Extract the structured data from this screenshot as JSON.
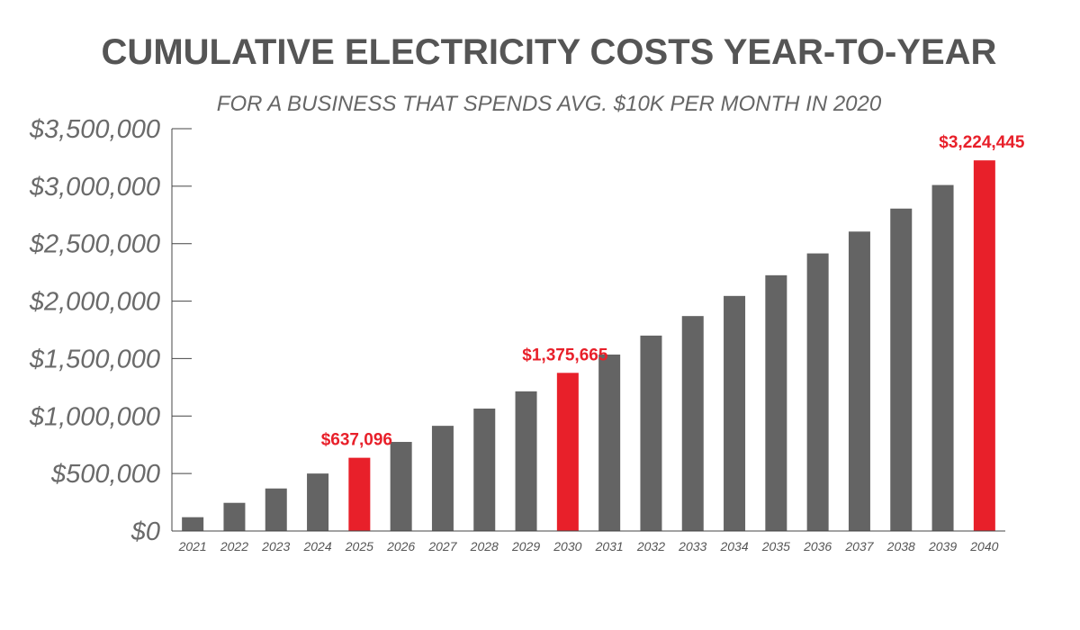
{
  "chart_data": {
    "type": "bar",
    "title": "CUMULATIVE ELECTRICITY COSTS YEAR-TO-YEAR",
    "subtitle": "FOR A BUSINESS THAT SPENDS AVG. $10K PER MONTH IN 2020",
    "xlabel": "",
    "ylabel": "",
    "ylim": [
      0,
      3500000
    ],
    "yticks": [
      0,
      500000,
      1000000,
      1500000,
      2000000,
      2500000,
      3000000,
      3500000
    ],
    "ytick_labels": [
      "$0",
      "$500,000",
      "$1,000,000",
      "$1,500,000",
      "$2,000,000",
      "$2,500,000",
      "$3,000,000",
      "$3,500,000"
    ],
    "categories": [
      "2021",
      "2022",
      "2023",
      "2024",
      "2025",
      "2026",
      "2027",
      "2028",
      "2029",
      "2030",
      "2031",
      "2032",
      "2033",
      "2034",
      "2035",
      "2036",
      "2037",
      "2038",
      "2039",
      "2040"
    ],
    "values": [
      120000,
      245000,
      370000,
      500000,
      637096,
      775000,
      915000,
      1065000,
      1215000,
      1375665,
      1535000,
      1700000,
      1870000,
      2045000,
      2225000,
      2415000,
      2605000,
      2805000,
      3010000,
      3224445
    ],
    "highlighted": [
      "2025",
      "2030",
      "2040"
    ],
    "data_labels": [
      {
        "category": "2025",
        "text": "$637,096"
      },
      {
        "category": "2030",
        "text": "$1,375,665"
      },
      {
        "category": "2040",
        "text": "$3,224,445"
      }
    ],
    "grid": false,
    "legend": "none",
    "colors": {
      "bar": "#646464",
      "highlight": "#e8202a",
      "axis": "#444444"
    }
  }
}
